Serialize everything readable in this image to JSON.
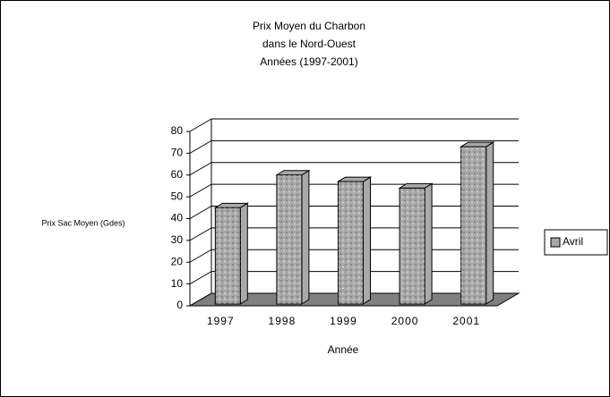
{
  "chart_data": {
    "type": "bar3d",
    "title": [
      "Prix Moyen du Charbon",
      "dans le Nord-Ouest",
      "Années (1997-2001)"
    ],
    "xlabel": "Année",
    "ylabel": "Prix Sac Moyen (Gdes)",
    "categories": [
      "1997",
      "1998",
      "1999",
      "2000",
      "2001"
    ],
    "series": [
      {
        "name": "Avril",
        "color": "#a9a9a9",
        "values": [
          45,
          60,
          57,
          54,
          73
        ]
      }
    ],
    "ylim": [
      0,
      80
    ],
    "yticks": [
      0,
      10,
      20,
      30,
      40,
      50,
      60,
      70,
      80
    ],
    "grid": true,
    "legend": "right"
  }
}
